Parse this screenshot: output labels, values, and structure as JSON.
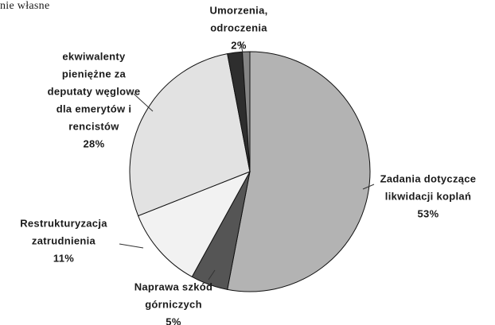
{
  "chart_data": {
    "type": "pie",
    "title": "nie własne",
    "categories": [
      [
        "Zadania dotyczące",
        "likwidacji koplań"
      ],
      [
        "Naprawa szkód",
        "górniczych"
      ],
      [
        "Restrukturyzacja",
        "zatrudnienia"
      ],
      [
        "ekwiwalenty",
        "pieniężne za",
        "deputaty węglowe",
        "dla emerytów i",
        "rencistów"
      ],
      [
        "Umorzenia,",
        "odroczenia"
      ],
      null
    ],
    "values": [
      53,
      5,
      11,
      28,
      2,
      1
    ],
    "value_labels": [
      "53%",
      "5%",
      "11%",
      "28%",
      "2%",
      null
    ],
    "colors": [
      "#b3b3b3",
      "#555555",
      "#f2f2f2",
      "#e2e2e2",
      "#2e2e2e",
      "#858585"
    ]
  }
}
